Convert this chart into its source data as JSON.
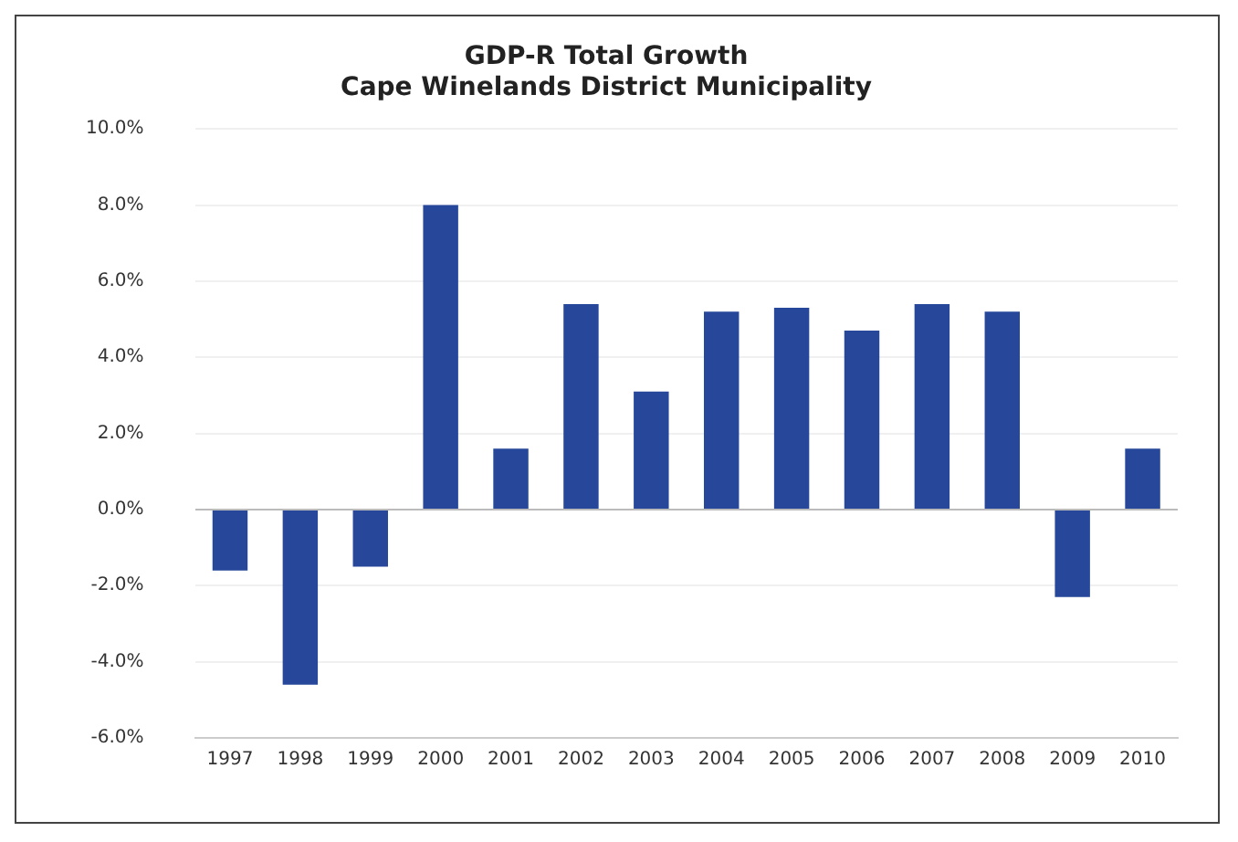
{
  "chart_data": {
    "type": "bar",
    "title": [
      "GDP-R Total Growth",
      "Cape Winelands District Municipality"
    ],
    "categories": [
      "1997",
      "1998",
      "1999",
      "2000",
      "2001",
      "2002",
      "2003",
      "2004",
      "2005",
      "2006",
      "2007",
      "2008",
      "2009",
      "2010"
    ],
    "values": [
      -1.6,
      -4.6,
      -1.5,
      8.0,
      1.6,
      5.4,
      3.1,
      5.2,
      5.3,
      4.7,
      5.4,
      5.2,
      -2.3,
      1.6
    ],
    "color": "#26479a",
    "ylim": [
      -6,
      10
    ],
    "yticks": [
      {
        "value": -6,
        "label": "-6.0%"
      },
      {
        "value": -4,
        "label": "-4.0%"
      },
      {
        "value": -2,
        "label": "-2.0%"
      },
      {
        "value": 0,
        "label": "0.0%"
      },
      {
        "value": 2,
        "label": "2.0%"
      },
      {
        "value": 4,
        "label": "4.0%"
      },
      {
        "value": 6,
        "label": "6.0%"
      },
      {
        "value": 8,
        "label": "8.0%"
      },
      {
        "value": 10,
        "label": "10.0%"
      }
    ],
    "grid": "y",
    "legend": false
  }
}
